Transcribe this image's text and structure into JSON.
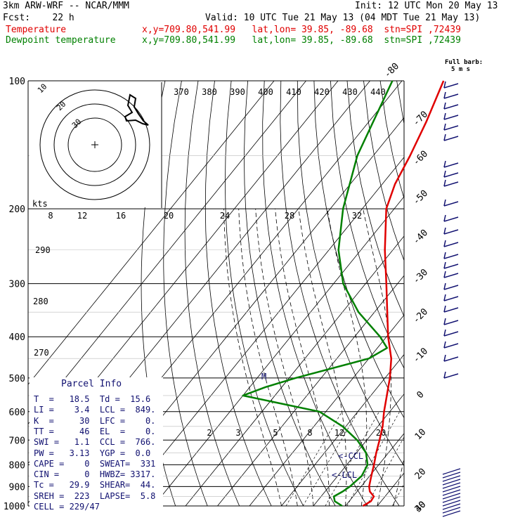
{
  "header": {
    "model": "3km ARW-WRF -- NCAR/MMM",
    "init": "Init: 12 UTC Mon 20 May 13",
    "fcst": "Fcst:    22 h",
    "valid": "Valid: 10 UTC Tue 21 May 13 (04 MDT Tue 21 May 13)",
    "temp_label": "Temperature",
    "temp_info": "x,y=709.80,541.99   lat,lon= 39.85, -89.68  stn=SPI ,72439",
    "dew_label": "Dewpoint temperature",
    "dew_info": "x,y=709.80,541.99   lat,lon= 39.85, -89.68  stn=SPI ,72439"
  },
  "barb_key": {
    "line1": "Full barb:",
    "line2": "5 m s"
  },
  "skewt": {
    "pressure_labels": [
      "100",
      "200",
      "300",
      "400",
      "500",
      "600",
      "700",
      "800",
      "900",
      "1000"
    ],
    "temp_labels": [
      "-80",
      "-70",
      "-60",
      "-50",
      "-40",
      "-30",
      "-20",
      "-10",
      "0",
      "10",
      "20",
      "30",
      "40"
    ],
    "theta_e_labels": [
      "370",
      "380",
      "390",
      "400",
      "410",
      "420",
      "430",
      "440"
    ],
    "theta_labels": [
      "290",
      "280",
      "270"
    ],
    "hodo_label": "kts",
    "hodo_speed_labels": [
      "8",
      "12",
      "16",
      "20",
      "24",
      "28",
      "32"
    ],
    "hodo_ring_labels": [
      "30",
      "20",
      "10"
    ],
    "mixing_ratio_labels": [
      "2",
      "3",
      "5",
      "8",
      "12",
      "20"
    ],
    "lcl_labels": [
      "<-CCL",
      "<-LCL"
    ],
    "m_label": "M"
  },
  "parcel_info": {
    "title": "Parcel Info",
    "rows": [
      "T  =   18.5  Td =  15.6",
      "LI =    3.4  LCL =  849.",
      "K  =     30  LFC =    0.",
      "TT =     46  EL  =    0.",
      "SWI =   1.1  CCL =  766.",
      "PW =   3.13  YGP =  0.0",
      "CAPE =    0  SWEAT=  331",
      "CIN =     0  HWBZ= 3317.",
      "Tc =   29.9  SHEAR=  44.",
      "SREH =  223  LAPSE=  5.8",
      "CELL = 229/47"
    ]
  },
  "chart_data": {
    "type": "line",
    "title": "",
    "xlabel": "",
    "ylabel": "",
    "y_axis": "pressure (hPa), log scale",
    "ylim": [
      1000,
      100
    ],
    "series": [
      {
        "name": "Temperature",
        "color": "#e00000",
        "points": [
          [
            1000,
            15.5
          ],
          [
            975,
            16.8
          ],
          [
            950,
            16.5
          ],
          [
            925,
            14.0
          ],
          [
            900,
            12.5
          ],
          [
            850,
            10.5
          ],
          [
            800,
            8.5
          ],
          [
            750,
            6.2
          ],
          [
            700,
            4.0
          ],
          [
            650,
            1.5
          ],
          [
            600,
            -1.8
          ],
          [
            550,
            -5.0
          ],
          [
            500,
            -8.5
          ],
          [
            450,
            -13.0
          ],
          [
            400,
            -19.5
          ],
          [
            350,
            -26.0
          ],
          [
            300,
            -33.5
          ],
          [
            250,
            -42.5
          ],
          [
            200,
            -52.5
          ],
          [
            175,
            -56.0
          ],
          [
            150,
            -58.5
          ],
          [
            125,
            -62.0
          ],
          [
            100,
            -67.0
          ]
        ]
      },
      {
        "name": "Dewpoint temperature",
        "color": "#008000",
        "points": [
          [
            1000,
            9.0
          ],
          [
            975,
            5.5
          ],
          [
            950,
            4.0
          ],
          [
            925,
            5.5
          ],
          [
            900,
            6.5
          ],
          [
            850,
            7.5
          ],
          [
            800,
            6.5
          ],
          [
            750,
            3.0
          ],
          [
            700,
            -3.0
          ],
          [
            650,
            -11.0
          ],
          [
            600,
            -22.0
          ],
          [
            550,
            -50.0
          ],
          [
            525,
            -45.0
          ],
          [
            500,
            -38.0
          ],
          [
            450,
            -20.0
          ],
          [
            425,
            -17.0
          ],
          [
            400,
            -22.0
          ],
          [
            350,
            -35.0
          ],
          [
            300,
            -47.0
          ],
          [
            250,
            -57.0
          ],
          [
            200,
            -66.0
          ],
          [
            150,
            -75.0
          ],
          [
            100,
            -83.0
          ]
        ]
      }
    ],
    "wind_barb_color": "#101070"
  }
}
